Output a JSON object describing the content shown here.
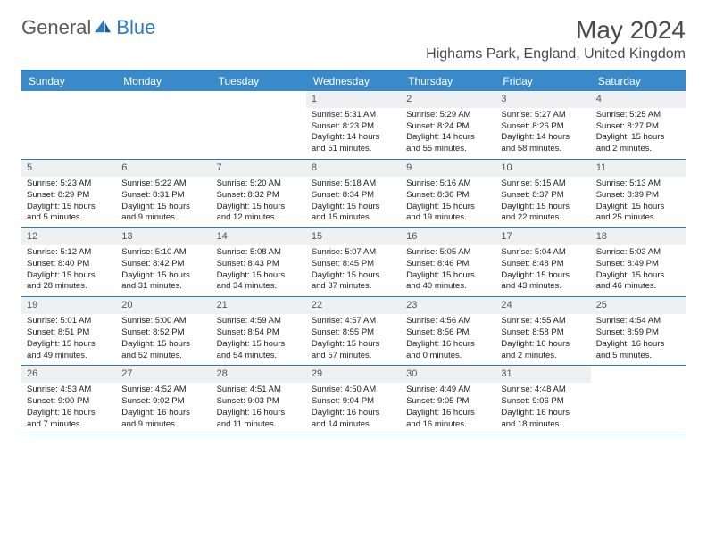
{
  "brand": {
    "part1": "General",
    "part2": "Blue"
  },
  "title": "May 2024",
  "location": "Highams Park, England, United Kingdom",
  "colors": {
    "header_bar": "#3a8ac9",
    "border": "#2b7bbf",
    "daynum_bg": "#eef0f2",
    "text": "#222222",
    "logo_gray": "#5a5a5a"
  },
  "dow": [
    "Sunday",
    "Monday",
    "Tuesday",
    "Wednesday",
    "Thursday",
    "Friday",
    "Saturday"
  ],
  "weeks": [
    [
      {
        "n": "",
        "sr": "",
        "ss": "",
        "dl": ""
      },
      {
        "n": "",
        "sr": "",
        "ss": "",
        "dl": ""
      },
      {
        "n": "",
        "sr": "",
        "ss": "",
        "dl": ""
      },
      {
        "n": "1",
        "sr": "Sunrise: 5:31 AM",
        "ss": "Sunset: 8:23 PM",
        "dl": "Daylight: 14 hours and 51 minutes."
      },
      {
        "n": "2",
        "sr": "Sunrise: 5:29 AM",
        "ss": "Sunset: 8:24 PM",
        "dl": "Daylight: 14 hours and 55 minutes."
      },
      {
        "n": "3",
        "sr": "Sunrise: 5:27 AM",
        "ss": "Sunset: 8:26 PM",
        "dl": "Daylight: 14 hours and 58 minutes."
      },
      {
        "n": "4",
        "sr": "Sunrise: 5:25 AM",
        "ss": "Sunset: 8:27 PM",
        "dl": "Daylight: 15 hours and 2 minutes."
      }
    ],
    [
      {
        "n": "5",
        "sr": "Sunrise: 5:23 AM",
        "ss": "Sunset: 8:29 PM",
        "dl": "Daylight: 15 hours and 5 minutes."
      },
      {
        "n": "6",
        "sr": "Sunrise: 5:22 AM",
        "ss": "Sunset: 8:31 PM",
        "dl": "Daylight: 15 hours and 9 minutes."
      },
      {
        "n": "7",
        "sr": "Sunrise: 5:20 AM",
        "ss": "Sunset: 8:32 PM",
        "dl": "Daylight: 15 hours and 12 minutes."
      },
      {
        "n": "8",
        "sr": "Sunrise: 5:18 AM",
        "ss": "Sunset: 8:34 PM",
        "dl": "Daylight: 15 hours and 15 minutes."
      },
      {
        "n": "9",
        "sr": "Sunrise: 5:16 AM",
        "ss": "Sunset: 8:36 PM",
        "dl": "Daylight: 15 hours and 19 minutes."
      },
      {
        "n": "10",
        "sr": "Sunrise: 5:15 AM",
        "ss": "Sunset: 8:37 PM",
        "dl": "Daylight: 15 hours and 22 minutes."
      },
      {
        "n": "11",
        "sr": "Sunrise: 5:13 AM",
        "ss": "Sunset: 8:39 PM",
        "dl": "Daylight: 15 hours and 25 minutes."
      }
    ],
    [
      {
        "n": "12",
        "sr": "Sunrise: 5:12 AM",
        "ss": "Sunset: 8:40 PM",
        "dl": "Daylight: 15 hours and 28 minutes."
      },
      {
        "n": "13",
        "sr": "Sunrise: 5:10 AM",
        "ss": "Sunset: 8:42 PM",
        "dl": "Daylight: 15 hours and 31 minutes."
      },
      {
        "n": "14",
        "sr": "Sunrise: 5:08 AM",
        "ss": "Sunset: 8:43 PM",
        "dl": "Daylight: 15 hours and 34 minutes."
      },
      {
        "n": "15",
        "sr": "Sunrise: 5:07 AM",
        "ss": "Sunset: 8:45 PM",
        "dl": "Daylight: 15 hours and 37 minutes."
      },
      {
        "n": "16",
        "sr": "Sunrise: 5:05 AM",
        "ss": "Sunset: 8:46 PM",
        "dl": "Daylight: 15 hours and 40 minutes."
      },
      {
        "n": "17",
        "sr": "Sunrise: 5:04 AM",
        "ss": "Sunset: 8:48 PM",
        "dl": "Daylight: 15 hours and 43 minutes."
      },
      {
        "n": "18",
        "sr": "Sunrise: 5:03 AM",
        "ss": "Sunset: 8:49 PM",
        "dl": "Daylight: 15 hours and 46 minutes."
      }
    ],
    [
      {
        "n": "19",
        "sr": "Sunrise: 5:01 AM",
        "ss": "Sunset: 8:51 PM",
        "dl": "Daylight: 15 hours and 49 minutes."
      },
      {
        "n": "20",
        "sr": "Sunrise: 5:00 AM",
        "ss": "Sunset: 8:52 PM",
        "dl": "Daylight: 15 hours and 52 minutes."
      },
      {
        "n": "21",
        "sr": "Sunrise: 4:59 AM",
        "ss": "Sunset: 8:54 PM",
        "dl": "Daylight: 15 hours and 54 minutes."
      },
      {
        "n": "22",
        "sr": "Sunrise: 4:57 AM",
        "ss": "Sunset: 8:55 PM",
        "dl": "Daylight: 15 hours and 57 minutes."
      },
      {
        "n": "23",
        "sr": "Sunrise: 4:56 AM",
        "ss": "Sunset: 8:56 PM",
        "dl": "Daylight: 16 hours and 0 minutes."
      },
      {
        "n": "24",
        "sr": "Sunrise: 4:55 AM",
        "ss": "Sunset: 8:58 PM",
        "dl": "Daylight: 16 hours and 2 minutes."
      },
      {
        "n": "25",
        "sr": "Sunrise: 4:54 AM",
        "ss": "Sunset: 8:59 PM",
        "dl": "Daylight: 16 hours and 5 minutes."
      }
    ],
    [
      {
        "n": "26",
        "sr": "Sunrise: 4:53 AM",
        "ss": "Sunset: 9:00 PM",
        "dl": "Daylight: 16 hours and 7 minutes."
      },
      {
        "n": "27",
        "sr": "Sunrise: 4:52 AM",
        "ss": "Sunset: 9:02 PM",
        "dl": "Daylight: 16 hours and 9 minutes."
      },
      {
        "n": "28",
        "sr": "Sunrise: 4:51 AM",
        "ss": "Sunset: 9:03 PM",
        "dl": "Daylight: 16 hours and 11 minutes."
      },
      {
        "n": "29",
        "sr": "Sunrise: 4:50 AM",
        "ss": "Sunset: 9:04 PM",
        "dl": "Daylight: 16 hours and 14 minutes."
      },
      {
        "n": "30",
        "sr": "Sunrise: 4:49 AM",
        "ss": "Sunset: 9:05 PM",
        "dl": "Daylight: 16 hours and 16 minutes."
      },
      {
        "n": "31",
        "sr": "Sunrise: 4:48 AM",
        "ss": "Sunset: 9:06 PM",
        "dl": "Daylight: 16 hours and 18 minutes."
      },
      {
        "n": "",
        "sr": "",
        "ss": "",
        "dl": ""
      }
    ]
  ]
}
